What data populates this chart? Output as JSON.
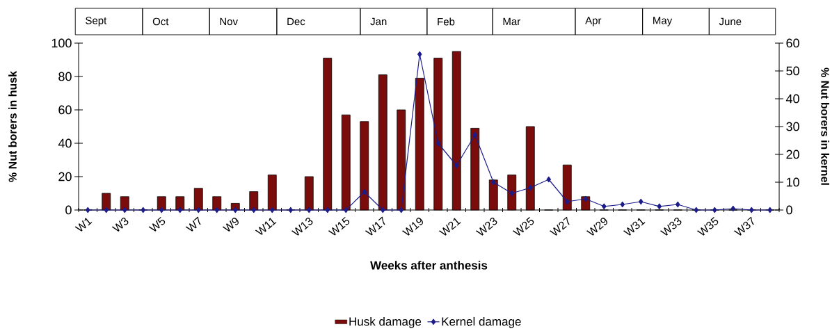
{
  "chart_data": {
    "type": "bar",
    "title": null,
    "categories": [
      "W1",
      null,
      "W3",
      null,
      "W5",
      null,
      "W7",
      null,
      "W9",
      null,
      "W11",
      null,
      "W13",
      null,
      "W15",
      null,
      "W17",
      null,
      "W19",
      null,
      "W21",
      null,
      "W23",
      null,
      "W25",
      null,
      "W27",
      null,
      "W29",
      null,
      "W31",
      null,
      "W33",
      null,
      "W35",
      null,
      "W37",
      null
    ],
    "series": [
      {
        "name": "Husk damage",
        "color": "#7a0c0c",
        "values": [
          0,
          10,
          8,
          0,
          8,
          8,
          13,
          8,
          4,
          11,
          21,
          0,
          20,
          91,
          57,
          53,
          81,
          60,
          79,
          91,
          95,
          49,
          18,
          21,
          50,
          0,
          27,
          8,
          0,
          0,
          0,
          0,
          0,
          0,
          0,
          0,
          0,
          0
        ]
      },
      {
        "name": "Kernel damage",
        "type": "line",
        "axis": "y2",
        "color": "#1c1c8a",
        "values": [
          0,
          0,
          0,
          0,
          0,
          0,
          0,
          0,
          0,
          0,
          0,
          0,
          0,
          0,
          0,
          6.5,
          0,
          0,
          56,
          24,
          16,
          27,
          10,
          6,
          8,
          11,
          3,
          4,
          1.3,
          2,
          3,
          1.3,
          2,
          0,
          0,
          0.5,
          0,
          0
        ]
      }
    ],
    "xlabel": "Weeks after anthesis",
    "ylabel": "% Nut borers in husk",
    "y2label": "% Nut borers in kernel",
    "ylim": [
      0,
      100
    ],
    "yticks": [
      0,
      20,
      40,
      60,
      80,
      100
    ],
    "y2lim": [
      0,
      60
    ],
    "y2ticks": [
      0,
      10,
      20,
      30,
      40,
      50,
      60
    ],
    "marker": "diamond",
    "legend": "bottom",
    "grid": false,
    "annotations": [
      "Sept",
      "Oct",
      "Nov",
      "Dec",
      "Jan",
      "Feb",
      "Mar",
      "Apr",
      "May",
      "June"
    ]
  }
}
